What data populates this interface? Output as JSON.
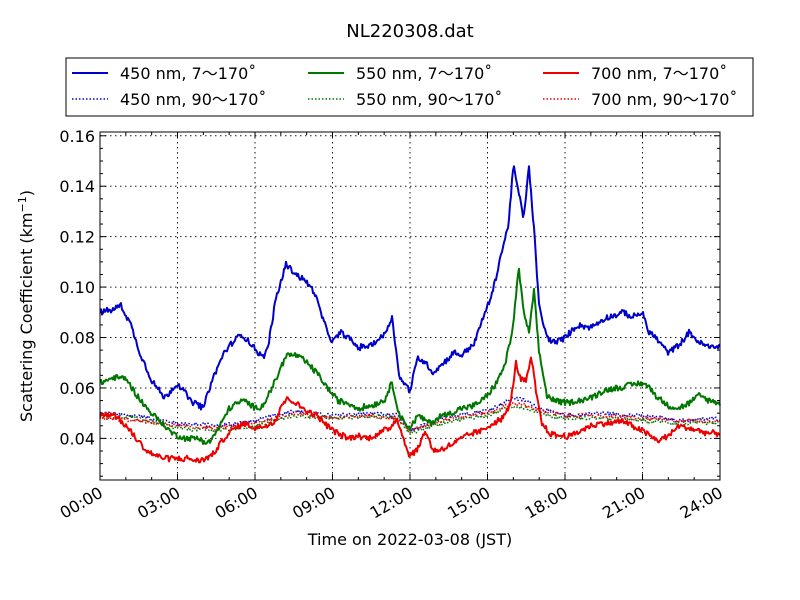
{
  "chart_data": {
    "type": "line",
    "title": "NL220308.dat",
    "xlabel": "Time on 2022-03-08 (JST)",
    "ylabel": "Scattering Coefficient (km",
    "ylabel_sup": "−1",
    "ylabel_close": ")",
    "xlim": [
      0,
      24
    ],
    "ylim": [
      0.0235,
      0.1615
    ],
    "xticks": [
      0,
      3,
      6,
      9,
      12,
      15,
      18,
      21,
      24
    ],
    "xtick_labels": [
      "00:00",
      "03:00",
      "06:00",
      "09:00",
      "12:00",
      "15:00",
      "18:00",
      "21:00",
      "24:00"
    ],
    "yticks": [
      0.04,
      0.06,
      0.08,
      0.1,
      0.12,
      0.14,
      0.16
    ],
    "ytick_labels": [
      "0.04",
      "0.06",
      "0.08",
      "0.10",
      "0.12",
      "0.14",
      "0.16"
    ],
    "grid": true,
    "legend_placement": "top, above plot",
    "series": [
      {
        "name": "450 nm, 7～170˚",
        "color": "#0000cc",
        "style": "solid",
        "x": [
          0,
          0.5,
          0.8,
          1.2,
          1.5,
          2.0,
          2.5,
          3.0,
          3.3,
          3.5,
          4.0,
          4.3,
          4.8,
          5.3,
          5.5,
          5.8,
          6.3,
          6.5,
          6.8,
          7.2,
          7.6,
          8.0,
          8.3,
          8.7,
          9.0,
          9.3,
          9.6,
          10.0,
          10.5,
          11.0,
          11.3,
          11.6,
          12.0,
          12.3,
          12.6,
          12.9,
          13.3,
          13.7,
          14.0,
          14.5,
          14.8,
          15.2,
          15.5,
          15.8,
          16.0,
          16.2,
          16.4,
          16.6,
          16.8,
          17.0,
          17.3,
          17.6,
          18.0,
          18.5,
          19.0,
          19.3,
          19.6,
          20.0,
          20.3,
          20.6,
          21.0,
          21.2,
          21.5,
          22.0,
          22.4,
          22.8,
          23.2,
          23.6,
          24.0
        ],
        "y": [
          0.09,
          0.091,
          0.093,
          0.085,
          0.075,
          0.063,
          0.056,
          0.062,
          0.058,
          0.055,
          0.052,
          0.062,
          0.074,
          0.08,
          0.081,
          0.078,
          0.072,
          0.076,
          0.095,
          0.109,
          0.105,
          0.102,
          0.098,
          0.085,
          0.078,
          0.082,
          0.08,
          0.076,
          0.077,
          0.081,
          0.088,
          0.064,
          0.059,
          0.072,
          0.07,
          0.066,
          0.07,
          0.074,
          0.073,
          0.078,
          0.087,
          0.098,
          0.112,
          0.124,
          0.148,
          0.138,
          0.127,
          0.148,
          0.123,
          0.092,
          0.08,
          0.078,
          0.08,
          0.085,
          0.084,
          0.086,
          0.088,
          0.089,
          0.09,
          0.088,
          0.09,
          0.083,
          0.08,
          0.074,
          0.077,
          0.082,
          0.078,
          0.076,
          0.077
        ]
      },
      {
        "name": "450 nm, 90～170˚",
        "color": "#0000cc",
        "style": "dotted",
        "x": [
          0,
          1.5,
          3.0,
          4.5,
          6.0,
          7.5,
          9.0,
          10.5,
          11.5,
          12.0,
          13.5,
          15.0,
          16.0,
          16.5,
          17.0,
          18.0,
          19.5,
          21.0,
          22.5,
          24.0
        ],
        "y": [
          0.05,
          0.049,
          0.046,
          0.045,
          0.047,
          0.051,
          0.049,
          0.05,
          0.049,
          0.043,
          0.049,
          0.051,
          0.056,
          0.055,
          0.052,
          0.049,
          0.05,
          0.049,
          0.047,
          0.048
        ]
      },
      {
        "name": "550 nm, 7～170˚",
        "color": "#007700",
        "style": "solid",
        "x": [
          0,
          0.5,
          1.0,
          1.3,
          1.8,
          2.3,
          2.8,
          3.3,
          3.8,
          4.2,
          4.6,
          5.0,
          5.3,
          5.6,
          6.0,
          6.3,
          6.8,
          7.2,
          7.6,
          8.0,
          8.4,
          8.8,
          9.2,
          9.6,
          10.0,
          10.5,
          11.0,
          11.3,
          11.6,
          12.0,
          12.3,
          12.8,
          13.2,
          13.6,
          14.0,
          14.5,
          15.0,
          15.4,
          15.7,
          16.0,
          16.2,
          16.4,
          16.6,
          16.8,
          17.0,
          17.3,
          17.6,
          18.0,
          18.5,
          19.0,
          19.5,
          20.0,
          20.5,
          21.0,
          21.3,
          21.6,
          22.0,
          22.4,
          22.8,
          23.2,
          23.6,
          24.0
        ],
        "y": [
          0.062,
          0.064,
          0.064,
          0.059,
          0.052,
          0.047,
          0.042,
          0.04,
          0.04,
          0.038,
          0.044,
          0.052,
          0.054,
          0.055,
          0.052,
          0.053,
          0.063,
          0.073,
          0.073,
          0.07,
          0.066,
          0.06,
          0.055,
          0.054,
          0.052,
          0.053,
          0.055,
          0.062,
          0.049,
          0.044,
          0.049,
          0.046,
          0.049,
          0.05,
          0.052,
          0.053,
          0.057,
          0.063,
          0.07,
          0.085,
          0.108,
          0.09,
          0.082,
          0.098,
          0.074,
          0.057,
          0.055,
          0.054,
          0.055,
          0.056,
          0.059,
          0.06,
          0.061,
          0.062,
          0.06,
          0.056,
          0.053,
          0.052,
          0.054,
          0.057,
          0.055,
          0.054
        ]
      },
      {
        "name": "550 nm, 90～170˚",
        "color": "#007700",
        "style": "dotted",
        "x": [
          0,
          1.5,
          3.0,
          4.5,
          6.0,
          7.5,
          9.0,
          10.5,
          11.5,
          12.0,
          13.5,
          15.0,
          16.0,
          16.5,
          17.0,
          18.0,
          19.5,
          21.0,
          22.5,
          24.0
        ],
        "y": [
          0.049,
          0.048,
          0.044,
          0.043,
          0.045,
          0.049,
          0.048,
          0.049,
          0.048,
          0.042,
          0.047,
          0.049,
          0.053,
          0.052,
          0.05,
          0.048,
          0.048,
          0.047,
          0.046,
          0.046
        ]
      },
      {
        "name": "700 nm, 7～170˚",
        "color": "#ee0000",
        "style": "solid",
        "x": [
          0,
          0.5,
          1.0,
          1.4,
          1.8,
          2.2,
          2.6,
          3.0,
          3.4,
          3.8,
          4.1,
          4.4,
          4.8,
          5.2,
          5.6,
          6.0,
          6.4,
          6.8,
          7.0,
          7.3,
          7.7,
          8.0,
          8.4,
          8.8,
          9.2,
          9.6,
          10.0,
          10.4,
          10.8,
          11.2,
          11.5,
          11.8,
          12.0,
          12.3,
          12.6,
          12.9,
          13.3,
          13.7,
          14.0,
          14.4,
          14.8,
          15.2,
          15.6,
          15.9,
          16.1,
          16.3,
          16.5,
          16.7,
          16.9,
          17.1,
          17.4,
          17.8,
          18.2,
          18.6,
          19.0,
          19.4,
          19.8,
          20.2,
          20.6,
          21.0,
          21.3,
          21.6,
          22.0,
          22.4,
          22.8,
          23.2,
          23.6,
          24.0
        ],
        "y": [
          0.049,
          0.05,
          0.045,
          0.04,
          0.035,
          0.033,
          0.032,
          0.032,
          0.032,
          0.031,
          0.032,
          0.034,
          0.04,
          0.044,
          0.046,
          0.044,
          0.045,
          0.047,
          0.053,
          0.056,
          0.053,
          0.051,
          0.049,
          0.045,
          0.042,
          0.04,
          0.041,
          0.04,
          0.042,
          0.044,
          0.048,
          0.038,
          0.033,
          0.036,
          0.043,
          0.035,
          0.036,
          0.038,
          0.04,
          0.042,
          0.043,
          0.046,
          0.048,
          0.054,
          0.07,
          0.063,
          0.063,
          0.072,
          0.057,
          0.046,
          0.042,
          0.041,
          0.041,
          0.043,
          0.045,
          0.046,
          0.046,
          0.047,
          0.045,
          0.043,
          0.041,
          0.039,
          0.041,
          0.045,
          0.044,
          0.043,
          0.042,
          0.042
        ]
      },
      {
        "name": "700 nm, 90～170˚",
        "color": "#ee0000",
        "style": "dotted",
        "x": [
          0,
          1.5,
          3.0,
          4.5,
          6.0,
          7.5,
          9.0,
          10.5,
          11.5,
          12.0,
          13.5,
          15.0,
          16.0,
          16.5,
          17.0,
          18.0,
          19.5,
          21.0,
          22.5,
          24.0
        ],
        "y": [
          0.048,
          0.047,
          0.045,
          0.044,
          0.046,
          0.05,
          0.048,
          0.049,
          0.048,
          0.043,
          0.048,
          0.05,
          0.054,
          0.053,
          0.051,
          0.049,
          0.049,
          0.048,
          0.047,
          0.047
        ]
      }
    ]
  }
}
